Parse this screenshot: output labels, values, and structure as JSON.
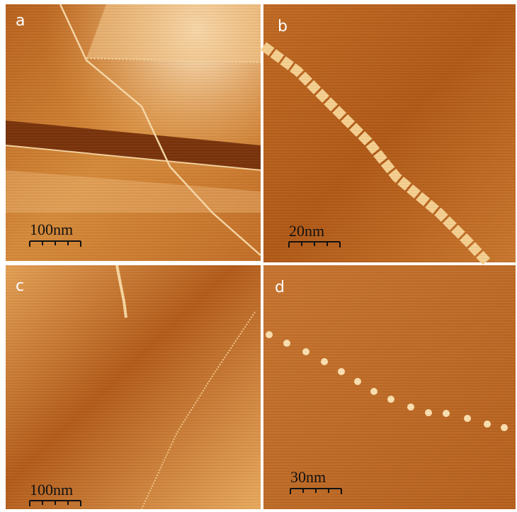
{
  "panels": [
    {
      "label": "a",
      "scale_bar": "100nm"
    },
    {
      "label": "b",
      "scale_bar": "20nm"
    },
    {
      "label": "c",
      "scale_bar": "100nm"
    },
    {
      "label": "d",
      "scale_bar": "30nm"
    }
  ]
}
